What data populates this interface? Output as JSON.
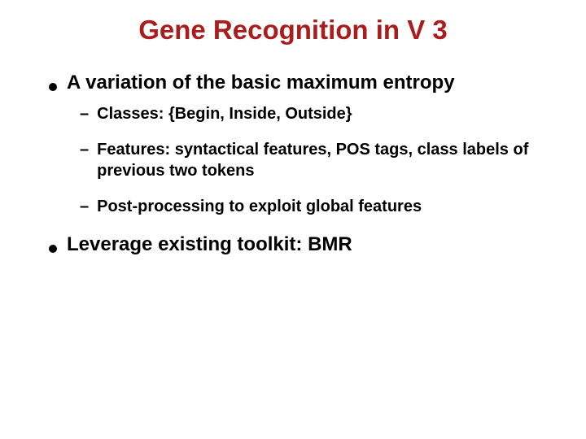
{
  "title": "Gene Recognition in V 3",
  "title_color": "#a91d1d",
  "title_fontsize": 33,
  "body_fontsize_main": 24,
  "body_fontsize_sub": 20,
  "text_color": "#000000",
  "background_color": "#ffffff",
  "bullets": [
    {
      "text": "A variation of the basic maximum entropy",
      "sub": [
        "Classes: {Begin, Inside, Outside}",
        "Features: syntactical features, POS tags, class labels of previous two tokens",
        "Post-processing to exploit global features"
      ]
    },
    {
      "text": "Leverage existing toolkit: BMR",
      "sub": []
    }
  ]
}
